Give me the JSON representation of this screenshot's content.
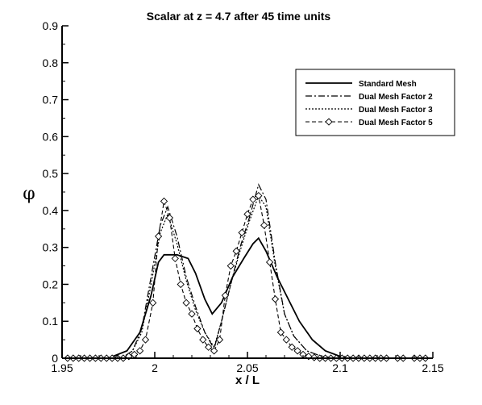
{
  "chart_data": {
    "type": "line",
    "title": "Scalar at z = 4.7 after 45 time units",
    "xlabel": "x / L",
    "ylabel": "φ",
    "xlim": [
      1.95,
      2.15
    ],
    "ylim": [
      0,
      0.9
    ],
    "xticks": [
      "1.95",
      "2",
      "2.05",
      "2.1",
      "2.15"
    ],
    "yticks": [
      "0",
      "0.1",
      "0.2",
      "0.3",
      "0.4",
      "0.5",
      "0.6",
      "0.7",
      "0.8",
      "0.9"
    ],
    "grid": false,
    "legend_position": "top-right",
    "series": [
      {
        "name": "Standard Mesh",
        "style": "solid",
        "x": [
          1.95,
          1.975,
          1.985,
          1.992,
          1.998,
          2.002,
          2.005,
          2.012,
          2.018,
          2.022,
          2.027,
          2.031,
          2.036,
          2.042,
          2.048,
          2.053,
          2.056,
          2.06,
          2.066,
          2.072,
          2.078,
          2.085,
          2.092,
          2.1,
          2.11,
          2.15
        ],
        "y": [
          0,
          0,
          0.02,
          0.07,
          0.17,
          0.26,
          0.28,
          0.28,
          0.27,
          0.23,
          0.16,
          0.12,
          0.15,
          0.22,
          0.27,
          0.31,
          0.325,
          0.29,
          0.22,
          0.16,
          0.1,
          0.05,
          0.02,
          0.005,
          0,
          0
        ]
      },
      {
        "name": "Dual Mesh Factor 2",
        "style": "dashdot",
        "x": [
          1.95,
          1.982,
          1.988,
          1.993,
          1.998,
          2.003,
          2.007,
          2.012,
          2.017,
          2.022,
          2.027,
          2.032,
          2.036,
          2.041,
          2.046,
          2.051,
          2.056,
          2.06,
          2.065,
          2.07,
          2.075,
          2.082,
          2.09,
          2.1,
          2.15
        ],
        "y": [
          0,
          0,
          0.02,
          0.08,
          0.22,
          0.36,
          0.41,
          0.33,
          0.22,
          0.14,
          0.07,
          0.025,
          0.1,
          0.2,
          0.3,
          0.38,
          0.47,
          0.43,
          0.26,
          0.12,
          0.06,
          0.02,
          0.005,
          0,
          0
        ]
      },
      {
        "name": "Dual Mesh Factor 3",
        "style": "dotted",
        "x": [
          1.95,
          1.983,
          1.988,
          1.993,
          1.998,
          2.003,
          2.007,
          2.012,
          2.017,
          2.022,
          2.027,
          2.032,
          2.036,
          2.041,
          2.046,
          2.051,
          2.056,
          2.06,
          2.065,
          2.07,
          2.075,
          2.082,
          2.09,
          2.1,
          2.15
        ],
        "y": [
          0,
          0,
          0.02,
          0.07,
          0.2,
          0.34,
          0.39,
          0.31,
          0.21,
          0.13,
          0.07,
          0.03,
          0.1,
          0.2,
          0.29,
          0.37,
          0.44,
          0.41,
          0.25,
          0.12,
          0.06,
          0.02,
          0.005,
          0,
          0
        ]
      },
      {
        "name": "Dual Mesh Factor 5",
        "style": "dashed-diamond",
        "x": [
          1.953,
          1.956,
          1.959,
          1.962,
          1.965,
          1.968,
          1.971,
          1.974,
          1.977,
          1.98,
          1.983,
          1.986,
          1.989,
          1.992,
          1.995,
          1.999,
          2.002,
          2.005,
          2.008,
          2.011,
          2.014,
          2.017,
          2.02,
          2.023,
          2.026,
          2.029,
          2.032,
          2.035,
          2.038,
          2.041,
          2.044,
          2.047,
          2.05,
          2.053,
          2.056,
          2.059,
          2.062,
          2.065,
          2.068,
          2.071,
          2.074,
          2.077,
          2.08,
          2.083,
          2.086,
          2.089,
          2.092,
          2.095,
          2.098,
          2.101,
          2.104,
          2.107,
          2.11,
          2.113,
          2.116,
          2.119,
          2.122,
          2.125,
          2.131,
          2.134,
          2.14,
          2.143,
          2.146
        ],
        "y": [
          0,
          0,
          0,
          0,
          0,
          0,
          0,
          0,
          0,
          0,
          0,
          0.005,
          0.01,
          0.02,
          0.05,
          0.15,
          0.33,
          0.425,
          0.38,
          0.27,
          0.2,
          0.15,
          0.12,
          0.08,
          0.05,
          0.03,
          0.02,
          0.05,
          0.17,
          0.25,
          0.29,
          0.34,
          0.39,
          0.43,
          0.44,
          0.36,
          0.26,
          0.16,
          0.07,
          0.05,
          0.03,
          0.02,
          0.01,
          0.005,
          0.002,
          0,
          0,
          0,
          0,
          0,
          0,
          0,
          0,
          0,
          0,
          0,
          0,
          0,
          0,
          0,
          0,
          0,
          0
        ]
      }
    ]
  }
}
